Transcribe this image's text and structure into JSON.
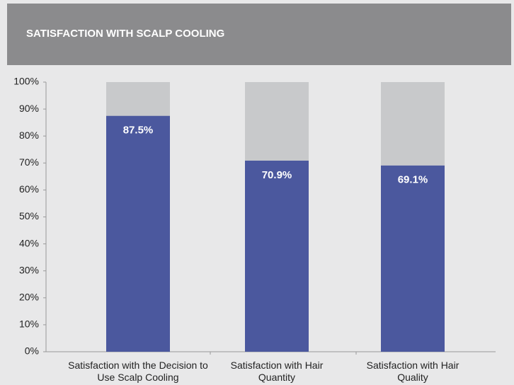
{
  "chart_data": {
    "type": "stacked_bar",
    "title": "SATISFACTION WITH SCALP COOLING",
    "categories": [
      "Satisfaction with the Decision to Use Scalp Cooling",
      "Satisfaction with Hair Quantity",
      "Satisfaction with Hair Quality"
    ],
    "series": [
      {
        "color": "#4b589e",
        "values": [
          87.5,
          70.9,
          69.1
        ],
        "value_labels": [
          "87.5%",
          "70.9%",
          "69.1%"
        ]
      },
      {
        "color": "#c8c9cb",
        "values": [
          12.5,
          29.1,
          30.9
        ]
      }
    ],
    "ylim": [
      0,
      100
    ],
    "yticks": [
      {
        "value": 0,
        "label": "0%"
      },
      {
        "value": 10,
        "label": "10%"
      },
      {
        "value": 20,
        "label": "20%"
      },
      {
        "value": 30,
        "label": "30%"
      },
      {
        "value": 40,
        "label": "40%"
      },
      {
        "value": 50,
        "label": "50%"
      },
      {
        "value": 60,
        "label": "60%"
      },
      {
        "value": 70,
        "label": "70%"
      },
      {
        "value": 80,
        "label": "80%"
      },
      {
        "value": 90,
        "label": "90%"
      },
      {
        "value": 100,
        "label": "100%"
      }
    ]
  }
}
